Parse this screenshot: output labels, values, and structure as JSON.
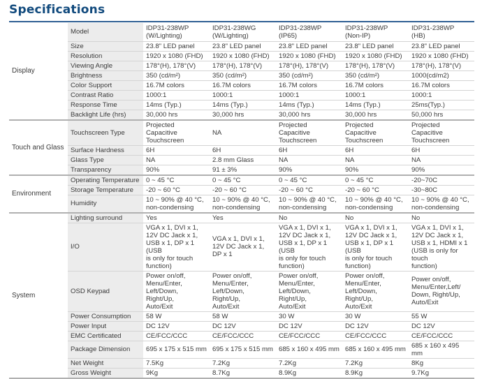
{
  "page": {
    "title": "Specifications"
  },
  "groups": [
    {
      "name": "Display",
      "rows": [
        {
          "label": "Model",
          "values": [
            "IDP31-238WP\n(W/Lighting)",
            "IDP31-238WG\n(W/Lighting)",
            "IDP31-238WP\n(IP65)",
            "IDP31-238WP\n(Non-IP)",
            "IDP31-238WP\n(HB)"
          ]
        },
        {
          "label": "Size",
          "values": [
            "23.8\" LED panel",
            "23.8\" LED panel",
            "23.8\" LED panel",
            "23.8\" LED panel",
            "23.8\" LED panel"
          ]
        },
        {
          "label": "Resolution",
          "values": [
            "1920 x 1080 (FHD)",
            "1920 x 1080 (FHD)",
            "1920 x 1080 (FHD)",
            "1920 x 1080 (FHD)",
            "1920 x 1080 (FHD)"
          ]
        },
        {
          "label": "Viewing Angle",
          "values": [
            "178°(H), 178°(V)",
            "178°(H), 178°(V)",
            "178°(H), 178°(V)",
            "178°(H), 178°(V)",
            "178°(H), 178°(V)"
          ]
        },
        {
          "label": "Brightness",
          "values": [
            "350 (cd/m²)",
            "350 (cd/m²)",
            "350 (cd/m²)",
            "350 (cd/m²)",
            "1000(cd/m2)"
          ]
        },
        {
          "label": "Color Support",
          "values": [
            "16.7M colors",
            "16.7M colors",
            "16.7M colors",
            "16.7M colors",
            "16.7M colors"
          ]
        },
        {
          "label": "Contrast Ratio",
          "values": [
            "1000:1",
            "1000:1",
            "1000:1",
            "1000:1",
            "1000:1"
          ]
        },
        {
          "label": "Response Time",
          "values": [
            "14ms (Typ.)",
            "14ms (Typ.)",
            "14ms (Typ.)",
            "14ms (Typ.)",
            "25ms(Typ.)"
          ]
        },
        {
          "label": "Backlight Life (hrs)",
          "values": [
            "30,000 hrs",
            "30,000 hrs",
            "30,000 hrs",
            "30,000 hrs",
            "50,000 hrs"
          ]
        }
      ]
    },
    {
      "name": "Touch and Glass",
      "rows": [
        {
          "label": "Touchscreen Type",
          "values": [
            "Projected Capacitive\nTouchscreen",
            "NA",
            "Projected Capacitive\nTouchscreen",
            "Projected Capacitive\nTouchscreen",
            "Projected Capacitive\nTouchscreen"
          ]
        },
        {
          "label": "Surface Hardness",
          "values": [
            "6H",
            "6H",
            "6H",
            "6H",
            "6H"
          ]
        },
        {
          "label": "Glass Type",
          "values": [
            "NA",
            "2.8 mm Glass",
            "NA",
            "NA",
            "NA"
          ]
        },
        {
          "label": "Transparency",
          "values": [
            "90%",
            "91 ± 3%",
            "90%",
            "90%",
            "90%"
          ]
        }
      ]
    },
    {
      "name": "Environment",
      "rows": [
        {
          "label": "Operating Temperature",
          "values": [
            "0 ~ 45 °C",
            "0 ~ 45 °C",
            "0 ~ 45 °C",
            "0 ~ 45 °C",
            "-20~70C"
          ]
        },
        {
          "label": "Storage Temperature",
          "values": [
            "-20 ~ 60 °C",
            "-20 ~ 60 °C",
            "-20 ~ 60 °C",
            "-20 ~ 60 °C",
            "-30~80C"
          ]
        },
        {
          "label": "Humidity",
          "values": [
            "10 ~ 90% @ 40 °C,\nnon-condensing",
            "10 ~ 90% @ 40 °C,\nnon-condensing",
            "10 ~ 90% @ 40 °C,\nnon-condensing",
            "10 ~ 90% @ 40 °C,\nnon-condensing",
            "10 ~ 90% @ 40 °C,\nnon-condensing"
          ]
        }
      ]
    },
    {
      "name": "System",
      "rows": [
        {
          "label": "Lighting surround",
          "values": [
            "Yes",
            "Yes",
            "No",
            "No",
            "No"
          ]
        },
        {
          "label": "I/O",
          "values": [
            "VGA x 1, DVI x 1,\n12V DC Jack x 1,\nUSB x 1, DP x 1 (USB\nis only for touch\nfunction)",
            "VGA x 1, DVI x 1,\n12V DC Jack x 1,\nDP x 1",
            "VGA x 1, DVI x 1,\n12V DC Jack x 1,\nUSB x 1, DP x 1 (USB\nis only for touch\nfunction)",
            "VGA x 1, DVI x 1,\n12V DC Jack x 1,\nUSB x 1, DP x 1 (USB\nis only for touch\nfunction)",
            "VGA x 1, DVI x 1,\n12V DC Jack x 1,\nUSB x 1, HDMI x 1\n(USB is only for touch\nfunction)"
          ]
        },
        {
          "label": "OSD Keypad",
          "values": [
            "Power on/off,\nMenu/Enter,\nLeft/Down, Right/Up,\nAuto/Exit",
            "Power on/off,\nMenu/Enter,\nLeft/Down, Right/Up,\nAuto/Exit",
            "Power on/off,\nMenu/Enter,\nLeft/Down, Right/Up,\nAuto/Exit",
            "Power on/off,\nMenu/Enter,\nLeft/Down, Right/Up,\nAuto/Exit",
            "Power on/off,\nMenu/Enter,Left/\nDown, Right/Up,\nAuto/Exit"
          ]
        },
        {
          "label": "Power Consumption",
          "values": [
            "58 W",
            "58 W",
            "30 W",
            "30 W",
            "55 W"
          ]
        },
        {
          "label": "Power Input",
          "values": [
            "DC 12V",
            "DC 12V",
            "DC 12V",
            "DC 12V",
            "DC 12V"
          ]
        },
        {
          "label": "EMC Certificated",
          "values": [
            "CE/FCC/CCC",
            "CE/FCC/CCC",
            "CE/FCC/CCC",
            "CE/FCC/CCC",
            "CE/FCC/CCC"
          ]
        },
        {
          "label": "Package Dimension",
          "values": [
            "695 x 175 x 515 mm",
            "695 x 175 x 515 mm",
            "685 x 160 x 495 mm",
            "685 x 160 x 495 mm",
            "685 x 160 x 495 mm"
          ]
        },
        {
          "label": "Net Weight",
          "values": [
            "7.5Kg",
            "7.2Kg",
            "7.2Kg",
            "7.2Kg",
            "8Kg"
          ]
        },
        {
          "label": "Gross Weight",
          "values": [
            "9Kg",
            "8.7Kg",
            "8.9Kg",
            "8.9Kg",
            "9.7Kg"
          ]
        }
      ]
    }
  ]
}
